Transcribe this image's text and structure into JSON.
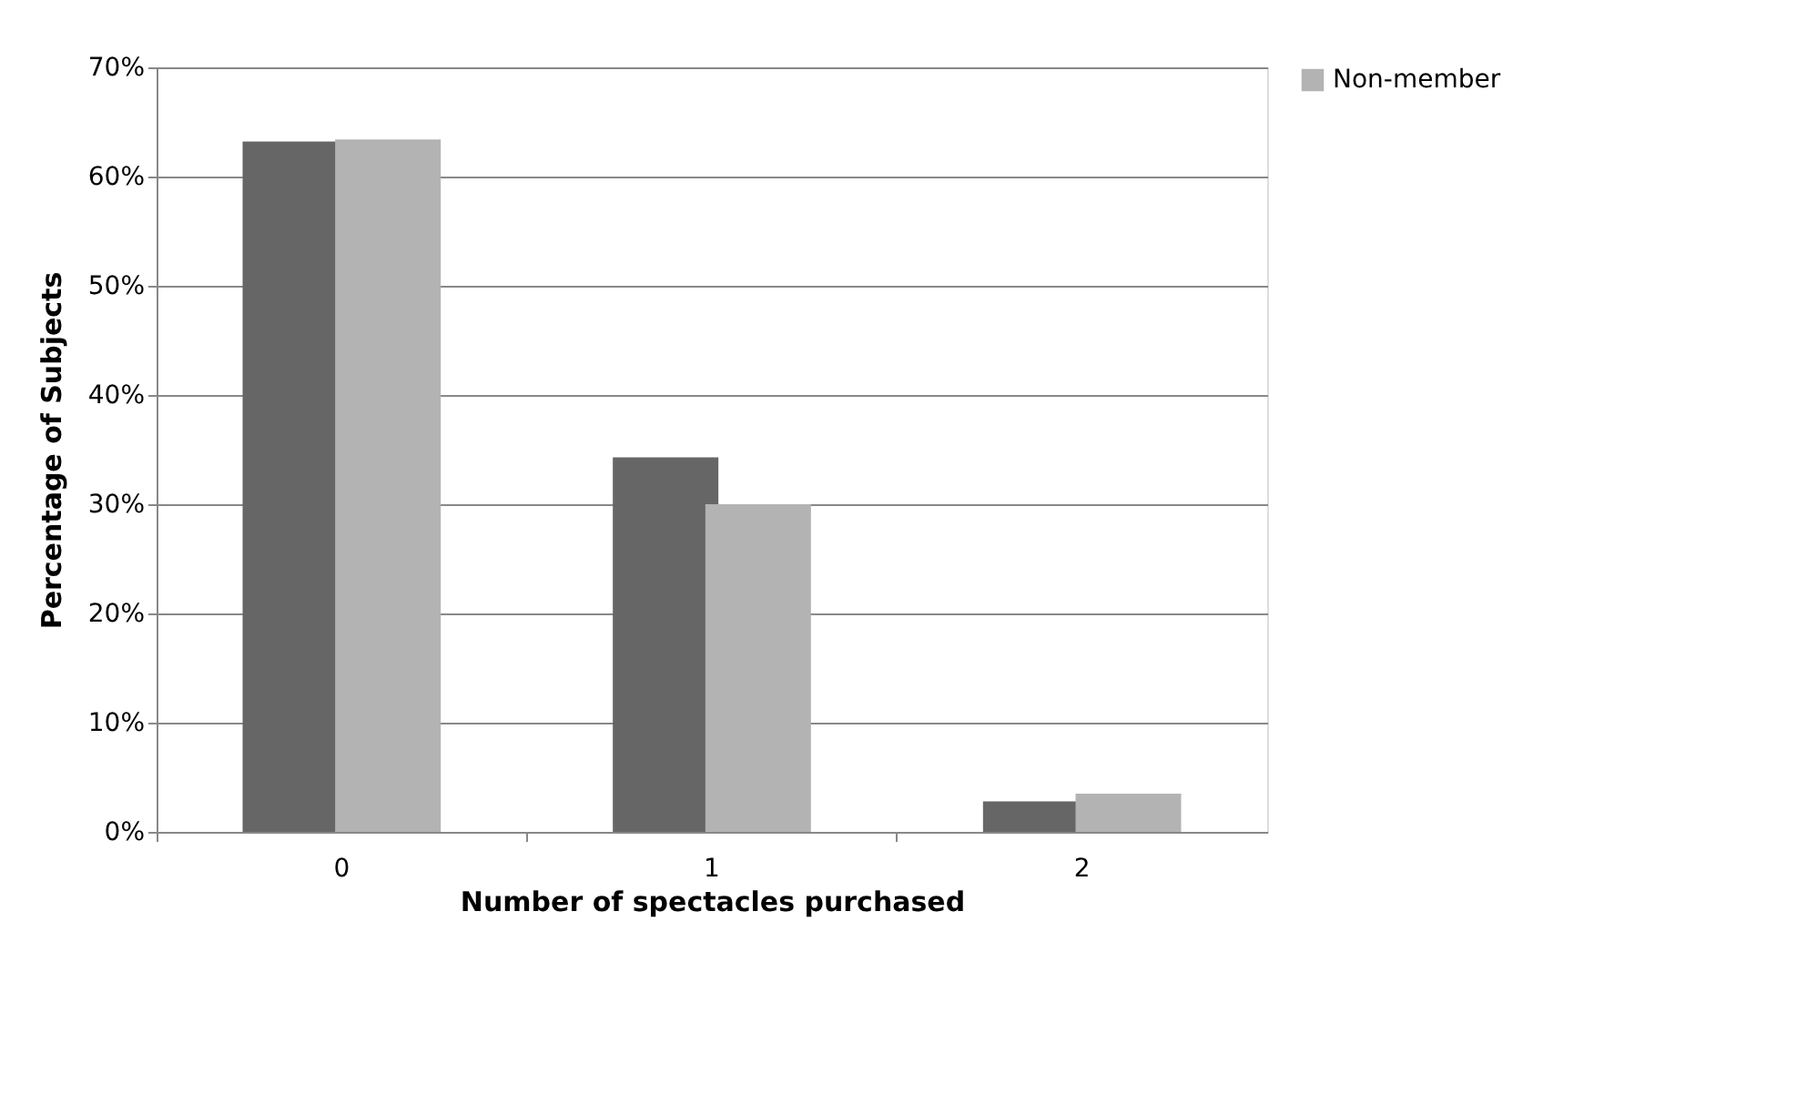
{
  "chart_data": {
    "type": "bar",
    "xlabel": "Number of spectacles purchased",
    "ylabel": "Percentage of Subjects",
    "categories": [
      "0",
      "1",
      "2"
    ],
    "series": [
      {
        "color": "#666666",
        "values": [
          63.2,
          34.3,
          2.8
        ]
      },
      {
        "name": "Non-member",
        "color": "#b3b3b3",
        "values": [
          63.4,
          30.0,
          3.5
        ]
      }
    ],
    "ylim": [
      0,
      70
    ],
    "yticks": [
      {
        "value": 0,
        "label": "0%"
      },
      {
        "value": 10,
        "label": "10%"
      },
      {
        "value": 20,
        "label": "20%"
      },
      {
        "value": 30,
        "label": "30%"
      },
      {
        "value": 40,
        "label": "40%"
      },
      {
        "value": 50,
        "label": "50%"
      },
      {
        "value": 60,
        "label": "60%"
      },
      {
        "value": 70,
        "label": "70%"
      }
    ],
    "grid": "y",
    "legend": "top right"
  }
}
